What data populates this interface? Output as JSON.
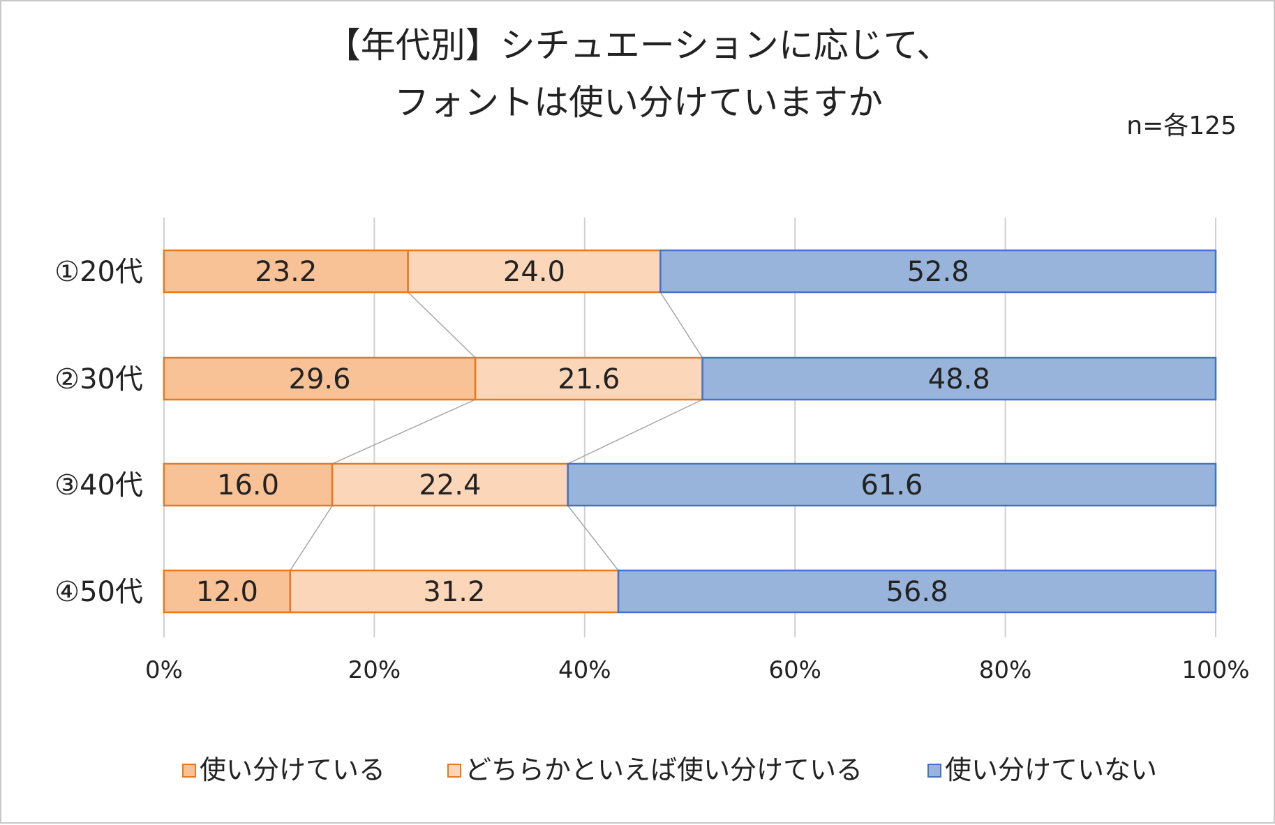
{
  "chart_data": {
    "type": "bar",
    "orientation": "horizontal",
    "stacked": "percent",
    "title_lines": [
      "【年代別】シチュエーションに応じて、",
      "フォントは使い分けていますか"
    ],
    "sample_note": "n=各125",
    "categories": [
      "①20代",
      "②30代",
      "③40代",
      "④50代"
    ],
    "series": [
      {
        "name": "使い分けている",
        "values": [
          23.2,
          29.6,
          16.0,
          12.0
        ],
        "color": "#f8c196"
      },
      {
        "name": "どちらかといえば使い分けている",
        "values": [
          24.0,
          21.6,
          22.4,
          31.2
        ],
        "color": "#fbd6b8"
      },
      {
        "name": "使い分けていない",
        "values": [
          52.8,
          48.8,
          61.6,
          56.8
        ],
        "color": "#98b4da"
      }
    ],
    "value_labels": [
      [
        "23.2",
        "29.6",
        "16.0",
        "12.0"
      ],
      [
        "24.0",
        "21.6",
        "22.4",
        "31.2"
      ],
      [
        "52.8",
        "48.8",
        "61.6",
        "56.8"
      ]
    ],
    "xlim": [
      0,
      100
    ],
    "x_ticks": [
      "0%",
      "20%",
      "40%",
      "60%",
      "80%",
      "100%"
    ],
    "grid": true,
    "series_lines": true,
    "legend_position": "bottom",
    "colors": {
      "border_orange": "#e6781f",
      "border_blue": "#4472c4",
      "grid": "#d0d0d0",
      "series_line": "#a6a6a6"
    }
  }
}
